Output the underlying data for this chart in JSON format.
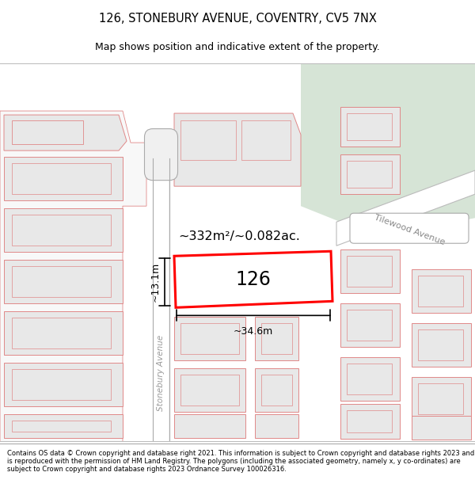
{
  "title_line1": "126, STONEBURY AVENUE, COVENTRY, CV5 7NX",
  "title_line2": "Map shows position and indicative extent of the property.",
  "footer_text": "Contains OS data © Crown copyright and database right 2021. This information is subject to Crown copyright and database rights 2023 and is reproduced with the permission of HM Land Registry. The polygons (including the associated geometry, namely x, y co-ordinates) are subject to Crown copyright and database rights 2023 Ordnance Survey 100026316.",
  "map_bg": "#ffffff",
  "green_area_color": "#d6e4d6",
  "building_fill": "#e8e8e8",
  "building_outline": "#e08888",
  "road_fill": "#ffffff",
  "road_outline": "#cccccc",
  "highlight_fill": "#ffffff",
  "highlight_outline": "#ff0000",
  "dim_line_color": "#000000",
  "area_label": "~332m²/~0.082ac.",
  "width_label": "~34.6m",
  "height_label": "~13.1m",
  "number_label": "126",
  "street_label1": "Stonebury Avenue",
  "street_label2": "Tilewood Avenue",
  "title_fontsize": 10.5,
  "subtitle_fontsize": 9,
  "footer_fontsize": 6.0
}
